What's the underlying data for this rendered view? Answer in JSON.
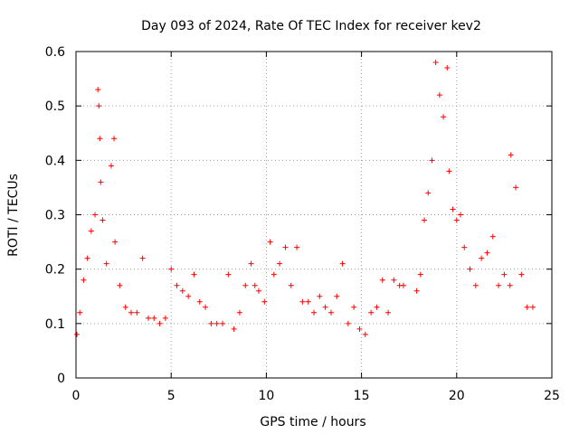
{
  "chart_data": {
    "type": "scatter",
    "title": "Day 093 of 2024, Rate Of TEC Index for receiver kev2",
    "xlabel": "GPS time / hours",
    "ylabel": "ROTI / TECUs",
    "xlim": [
      0,
      25
    ],
    "ylim": [
      0,
      0.6
    ],
    "x_ticks": [
      0,
      5,
      10,
      15,
      20,
      25
    ],
    "x_tick_labels": [
      "0",
      "5",
      "10",
      "15",
      "20",
      "25"
    ],
    "y_ticks": [
      0,
      0.1,
      0.2,
      0.3,
      0.4,
      0.5,
      0.6
    ],
    "y_tick_labels": [
      "0",
      "0.1",
      "0.2",
      "0.3",
      "0.4",
      "0.5",
      "0.6"
    ],
    "grid": true,
    "marker": "plus",
    "series": [
      {
        "name": "ROTI",
        "color": "#ff0000",
        "x": [
          0.05,
          0.2,
          0.4,
          0.6,
          0.8,
          1.0,
          1.15,
          1.2,
          1.25,
          1.3,
          1.4,
          1.6,
          1.85,
          2.0,
          2.05,
          2.3,
          2.6,
          2.9,
          3.2,
          3.5,
          3.8,
          4.1,
          4.4,
          4.7,
          5.0,
          5.3,
          5.6,
          5.9,
          6.2,
          6.5,
          6.8,
          7.1,
          7.4,
          7.7,
          8.0,
          8.3,
          8.6,
          8.9,
          9.2,
          9.4,
          9.6,
          9.9,
          10.2,
          10.4,
          10.7,
          11.0,
          11.3,
          11.6,
          11.9,
          12.2,
          12.5,
          12.8,
          13.1,
          13.4,
          13.7,
          14.0,
          14.3,
          14.6,
          14.9,
          15.2,
          15.5,
          15.8,
          16.1,
          16.4,
          16.7,
          17.0,
          17.2,
          17.9,
          18.1,
          18.3,
          18.5,
          18.7,
          18.9,
          19.1,
          19.3,
          19.5,
          19.6,
          19.8,
          20.0,
          20.2,
          20.4,
          20.7,
          21.0,
          21.3,
          21.6,
          21.9,
          22.2,
          22.5,
          22.8,
          22.85,
          23.1,
          23.4,
          23.7,
          24.0
        ],
        "y": [
          0.08,
          0.12,
          0.18,
          0.22,
          0.27,
          0.3,
          0.53,
          0.5,
          0.44,
          0.36,
          0.29,
          0.21,
          0.39,
          0.44,
          0.25,
          0.17,
          0.13,
          0.12,
          0.12,
          0.22,
          0.11,
          0.11,
          0.1,
          0.11,
          0.2,
          0.17,
          0.16,
          0.15,
          0.19,
          0.14,
          0.13,
          0.1,
          0.1,
          0.1,
          0.19,
          0.09,
          0.12,
          0.17,
          0.21,
          0.17,
          0.16,
          0.14,
          0.25,
          0.19,
          0.21,
          0.24,
          0.17,
          0.24,
          0.14,
          0.14,
          0.12,
          0.15,
          0.13,
          0.12,
          0.15,
          0.21,
          0.1,
          0.13,
          0.09,
          0.08,
          0.12,
          0.13,
          0.18,
          0.12,
          0.18,
          0.17,
          0.17,
          0.16,
          0.19,
          0.29,
          0.34,
          0.4,
          0.58,
          0.52,
          0.48,
          0.57,
          0.38,
          0.31,
          0.29,
          0.3,
          0.24,
          0.2,
          0.17,
          0.22,
          0.23,
          0.26,
          0.17,
          0.19,
          0.17,
          0.41,
          0.35,
          0.19,
          0.13,
          0.13
        ]
      }
    ]
  }
}
